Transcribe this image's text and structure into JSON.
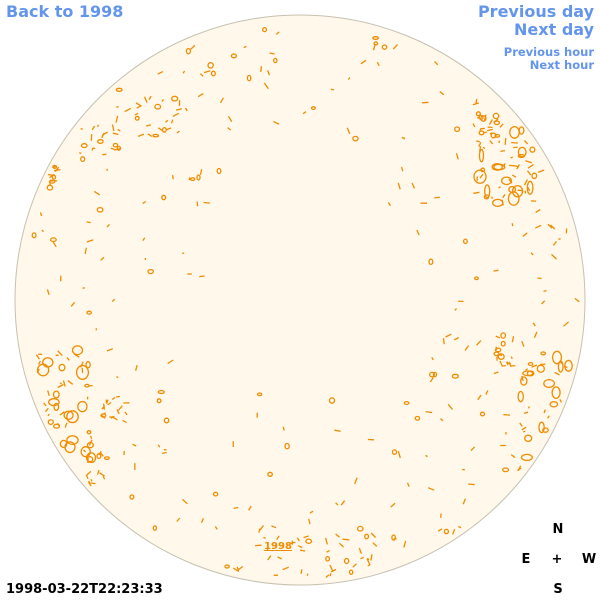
{
  "nav": {
    "back_label": "Back to 1998",
    "prev_day_label": "Previous day",
    "next_day_label": "Next day",
    "prev_hour_label": "Previous hour",
    "next_hour_label": "Next hour"
  },
  "disk": {
    "year_label": "1998",
    "fill_color": "#FFF8EB",
    "border_color": "#C8C0B0",
    "contour_color": "#F08C00"
  },
  "compass": {
    "north": "N",
    "south": "S",
    "east": "E",
    "west": "W",
    "center": "+"
  },
  "timestamp": "1998-03-22T22:23:33"
}
